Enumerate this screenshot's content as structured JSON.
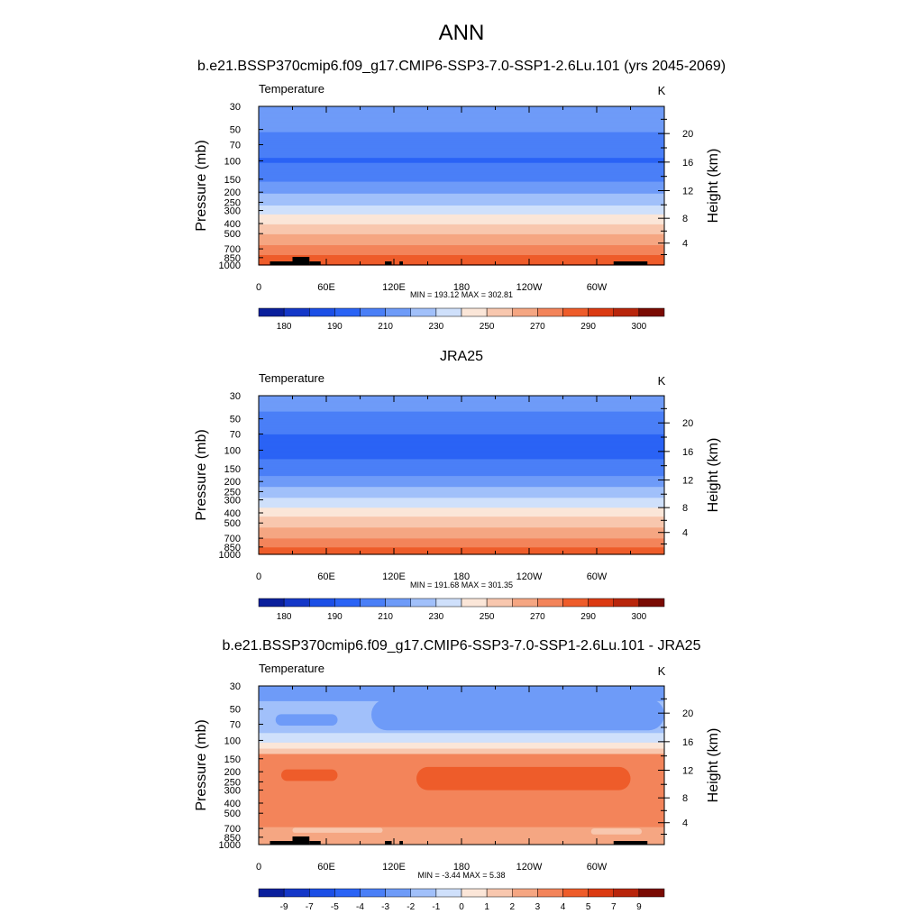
{
  "figure": {
    "title": "ANN",
    "panel_titles": [
      "b.e21.BSSP370cmip6.f09_g17.CMIP6-SSP3-7.0-SSP1-2.6Lu.101 (yrs 2045-2069)",
      "JRA25",
      "b.e21.BSSP370cmip6.f09_g17.CMIP6-SSP3-7.0-SSP1-2.6Lu.101 - JRA25"
    ]
  },
  "colors": {
    "temp_fill": [
      "#0a1f9c",
      "#1437c8",
      "#1c4fe6",
      "#2a63f5",
      "#4a7ff7",
      "#6e9bf8",
      "#a1c0fa",
      "#cfe0fb",
      "#fbe6d8",
      "#f8c7ae",
      "#f5a682",
      "#f3845a",
      "#ee5c2a",
      "#db3a12",
      "#b8250b",
      "#7a0b03"
    ],
    "terrain": "#000000"
  },
  "chart_data": [
    {
      "type": "heatmap",
      "panel": "model",
      "left_label": "Temperature",
      "unit_label": "K",
      "ylabel": "Pressure (mb)",
      "y2label": "Height (km)",
      "x_ticks": [
        "0",
        "60E",
        "120E",
        "180",
        "120W",
        "60W"
      ],
      "x_range": [
        0,
        360
      ],
      "pressure_ticks": [
        "30",
        "50",
        "70",
        "100",
        "150",
        "200",
        "250",
        "300",
        "400",
        "500",
        "700",
        "850",
        "1000"
      ],
      "height_ticks": [
        "20",
        "16",
        "12",
        "8",
        "4"
      ],
      "stats": "MIN = 193.12  MAX = 302.81",
      "colorbar_labels": [
        "180",
        "190",
        "210",
        "230",
        "250",
        "270",
        "290",
        "300"
      ],
      "profile_K": [
        [
          30,
          216
        ],
        [
          50,
          211
        ],
        [
          70,
          204
        ],
        [
          100,
          199
        ],
        [
          150,
          208
        ],
        [
          200,
          219
        ],
        [
          250,
          227
        ],
        [
          300,
          236
        ],
        [
          400,
          249
        ],
        [
          500,
          259
        ],
        [
          700,
          274
        ],
        [
          850,
          283
        ],
        [
          1000,
          291
        ]
      ],
      "terrain_lon": [
        [
          10,
          40
        ],
        [
          30,
          45
        ],
        [
          45,
          55
        ],
        [
          112,
          118
        ],
        [
          125,
          128
        ],
        [
          315,
          345
        ]
      ]
    },
    {
      "type": "heatmap",
      "panel": "observations",
      "left_label": "Temperature",
      "unit_label": "K",
      "ylabel": "Pressure (mb)",
      "y2label": "Height (km)",
      "x_ticks": [
        "0",
        "60E",
        "120E",
        "180",
        "120W",
        "60W"
      ],
      "x_range": [
        0,
        360
      ],
      "pressure_ticks": [
        "30",
        "50",
        "70",
        "100",
        "150",
        "200",
        "250",
        "300",
        "400",
        "500",
        "700",
        "850",
        "1000"
      ],
      "height_ticks": [
        "20",
        "16",
        "12",
        "8",
        "4"
      ],
      "stats": "MIN = 191.68  MAX = 301.35",
      "colorbar_labels": [
        "180",
        "190",
        "210",
        "230",
        "250",
        "270",
        "290",
        "300"
      ],
      "profile_K": [
        [
          30,
          214
        ],
        [
          50,
          208
        ],
        [
          70,
          200
        ],
        [
          100,
          196
        ],
        [
          150,
          204
        ],
        [
          200,
          215
        ],
        [
          250,
          224
        ],
        [
          300,
          232
        ],
        [
          400,
          246
        ],
        [
          500,
          256
        ],
        [
          700,
          270
        ],
        [
          850,
          279
        ],
        [
          1000,
          288
        ]
      ]
    },
    {
      "type": "heatmap",
      "panel": "difference",
      "left_label": "Temperature",
      "unit_label": "K",
      "ylabel": "Pressure (mb)",
      "y2label": "Height (km)",
      "x_ticks": [
        "0",
        "60E",
        "120E",
        "180",
        "120W",
        "60W"
      ],
      "x_range": [
        0,
        360
      ],
      "pressure_ticks": [
        "30",
        "50",
        "70",
        "100",
        "150",
        "200",
        "250",
        "300",
        "400",
        "500",
        "700",
        "850",
        "1000"
      ],
      "height_ticks": [
        "20",
        "16",
        "12",
        "8",
        "4"
      ],
      "stats": "MIN =  -3.44  MAX =   5.38",
      "colorbar_labels": [
        "-9",
        "-7",
        "-5",
        "-4",
        "-3",
        "-2",
        "-1",
        "0",
        "1",
        "2",
        "3",
        "4",
        "5",
        "7",
        "9"
      ],
      "layers": [
        {
          "p_top": 30,
          "p_bot": 42,
          "value": -3
        },
        {
          "p_top": 42,
          "p_bot": 85,
          "value": -2
        },
        {
          "p_top": 85,
          "p_bot": 105,
          "value": -1
        },
        {
          "p_top": 105,
          "p_bot": 120,
          "value": 0
        },
        {
          "p_top": 120,
          "p_bot": 135,
          "value": 1
        },
        {
          "p_top": 135,
          "p_bot": 680,
          "value": 3
        },
        {
          "p_top": 680,
          "p_bot": 1000,
          "value": 2
        }
      ],
      "regions": [
        {
          "lon": [
            100,
            360
          ],
          "p_top": 40,
          "p_bot": 80,
          "value": -3
        },
        {
          "lon": [
            15,
            70
          ],
          "p_top": 56,
          "p_bot": 72,
          "value": -3
        },
        {
          "lon": [
            20,
            70
          ],
          "p_top": 190,
          "p_bot": 245,
          "value": 4
        },
        {
          "lon": [
            140,
            330
          ],
          "p_top": 180,
          "p_bot": 300,
          "value": 4
        },
        {
          "lon": [
            30,
            110
          ],
          "p_top": 690,
          "p_bot": 770,
          "value": 1
        },
        {
          "lon": [
            295,
            340
          ],
          "p_top": 700,
          "p_bot": 800,
          "value": 1
        }
      ],
      "terrain_lon": [
        [
          10,
          40
        ],
        [
          30,
          45
        ],
        [
          45,
          55
        ],
        [
          112,
          118
        ],
        [
          125,
          128
        ],
        [
          315,
          345
        ]
      ]
    }
  ]
}
